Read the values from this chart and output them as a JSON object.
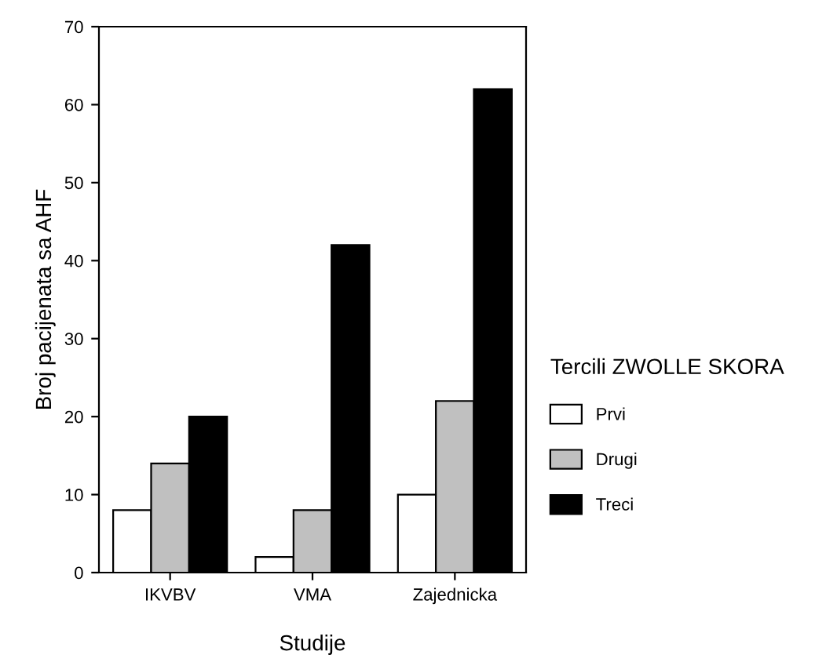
{
  "chart_data": {
    "type": "bar",
    "xlabel": "Studije",
    "ylabel": "Broj pacijenata sa AHF",
    "legend_title": "Tercili ZWOLLE SKORA",
    "categories": [
      "IKVBV",
      "VMA",
      "Zajednicka"
    ],
    "series": [
      {
        "name": "Prvi",
        "color": "#ffffff",
        "values": [
          8,
          2,
          10
        ]
      },
      {
        "name": "Drugi",
        "color": "#c0c0c0",
        "values": [
          14,
          8,
          22
        ]
      },
      {
        "name": "Treci",
        "color": "#000000",
        "values": [
          20,
          42,
          62
        ]
      }
    ],
    "ylim": [
      0,
      70
    ],
    "yticks": [
      0,
      10,
      20,
      30,
      40,
      50,
      60,
      70
    ],
    "grid": false,
    "legend": "right"
  }
}
